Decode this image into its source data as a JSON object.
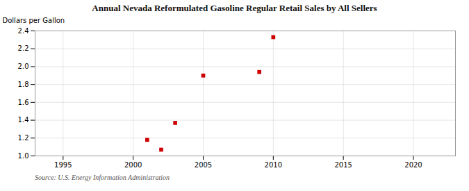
{
  "chart_data": {
    "type": "scatter",
    "title": "Annual Nevada Reformulated Gasoline Regular Retail Sales by All Sellers",
    "ylabel": "Dollars per Gallon",
    "caption": "Source: U.S. Energy Information Administration",
    "x": [
      2001,
      2002,
      2003,
      2005,
      2009,
      2010
    ],
    "values": [
      1.18,
      1.07,
      1.37,
      1.9,
      1.94,
      2.33
    ],
    "color": "#cc0000",
    "marker": "square",
    "xlim": [
      1993,
      2023
    ],
    "ylim": [
      1.0,
      2.4
    ],
    "xticks": [
      1995,
      2000,
      2005,
      2010,
      2015,
      2020
    ],
    "yticks": [
      {
        "value": 1.0,
        "label": "1.0"
      },
      1.2,
      1.4,
      1.6,
      1.8,
      {
        "value": 2.0,
        "label": "2.0"
      },
      2.2,
      2.4
    ],
    "grid": true
  }
}
